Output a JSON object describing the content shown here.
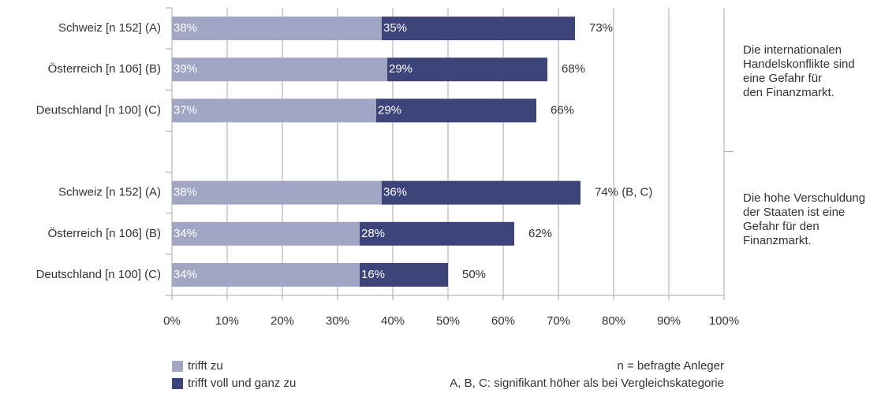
{
  "chart_data": {
    "type": "stacked-barh",
    "categories": [
      "Schweiz [n 152] (A)",
      "Österreich [n 106] (B)",
      "Deutschland [n 100] (C)",
      null,
      "Schweiz [n 152] (A)",
      "Österreich [n 106] (B)",
      "Deutschland [n 100] (C)"
    ],
    "series": [
      {
        "name": "trifft zu",
        "color": "#a0a6c4",
        "values": [
          38,
          39,
          37,
          null,
          38,
          34,
          34
        ],
        "value_labels": [
          "38%",
          "39%",
          "37%",
          null,
          "38%",
          "34%",
          "34%"
        ]
      },
      {
        "name": "trifft voll und ganz zu",
        "color": "#3d4479",
        "values": [
          35,
          29,
          29,
          null,
          36,
          28,
          16
        ],
        "value_labels": [
          "35%",
          "29%",
          "29%",
          null,
          "36%",
          "28%",
          "16%"
        ]
      }
    ],
    "totals": {
      "values": [
        73,
        68,
        66,
        null,
        74,
        62,
        50
      ],
      "value_labels": [
        "73%",
        "68%",
        "66%",
        null,
        "74% (B, C)",
        "62%",
        "50%"
      ]
    },
    "xlim": [
      0,
      100
    ],
    "xticks": [
      {
        "value": 0,
        "label": "0%"
      },
      {
        "value": 10,
        "label": "10%"
      },
      {
        "value": 20,
        "label": "20%"
      },
      {
        "value": 30,
        "label": "30%"
      },
      {
        "value": 40,
        "label": "40%"
      },
      {
        "value": 50,
        "label": "50%"
      },
      {
        "value": 60,
        "label": "60%"
      },
      {
        "value": 70,
        "label": "70%"
      },
      {
        "value": 80,
        "label": "80%"
      },
      {
        "value": 90,
        "label": "90%"
      },
      {
        "value": 100,
        "label": "100%"
      }
    ],
    "grid": true,
    "group_labels": [
      [
        "Die internationalen",
        "Handelskonflikte sind",
        "eine Gefahr für",
        "den Finanzmarkt."
      ],
      [
        "Die hohe Verschuldung",
        "der Staaten ist eine",
        "Gefahr für den",
        "Finanzmarkt."
      ]
    ],
    "notes": [
      "n = befragte Anleger",
      "A, B, C: signifikant höher als bei Vergleichskategorie"
    ]
  }
}
